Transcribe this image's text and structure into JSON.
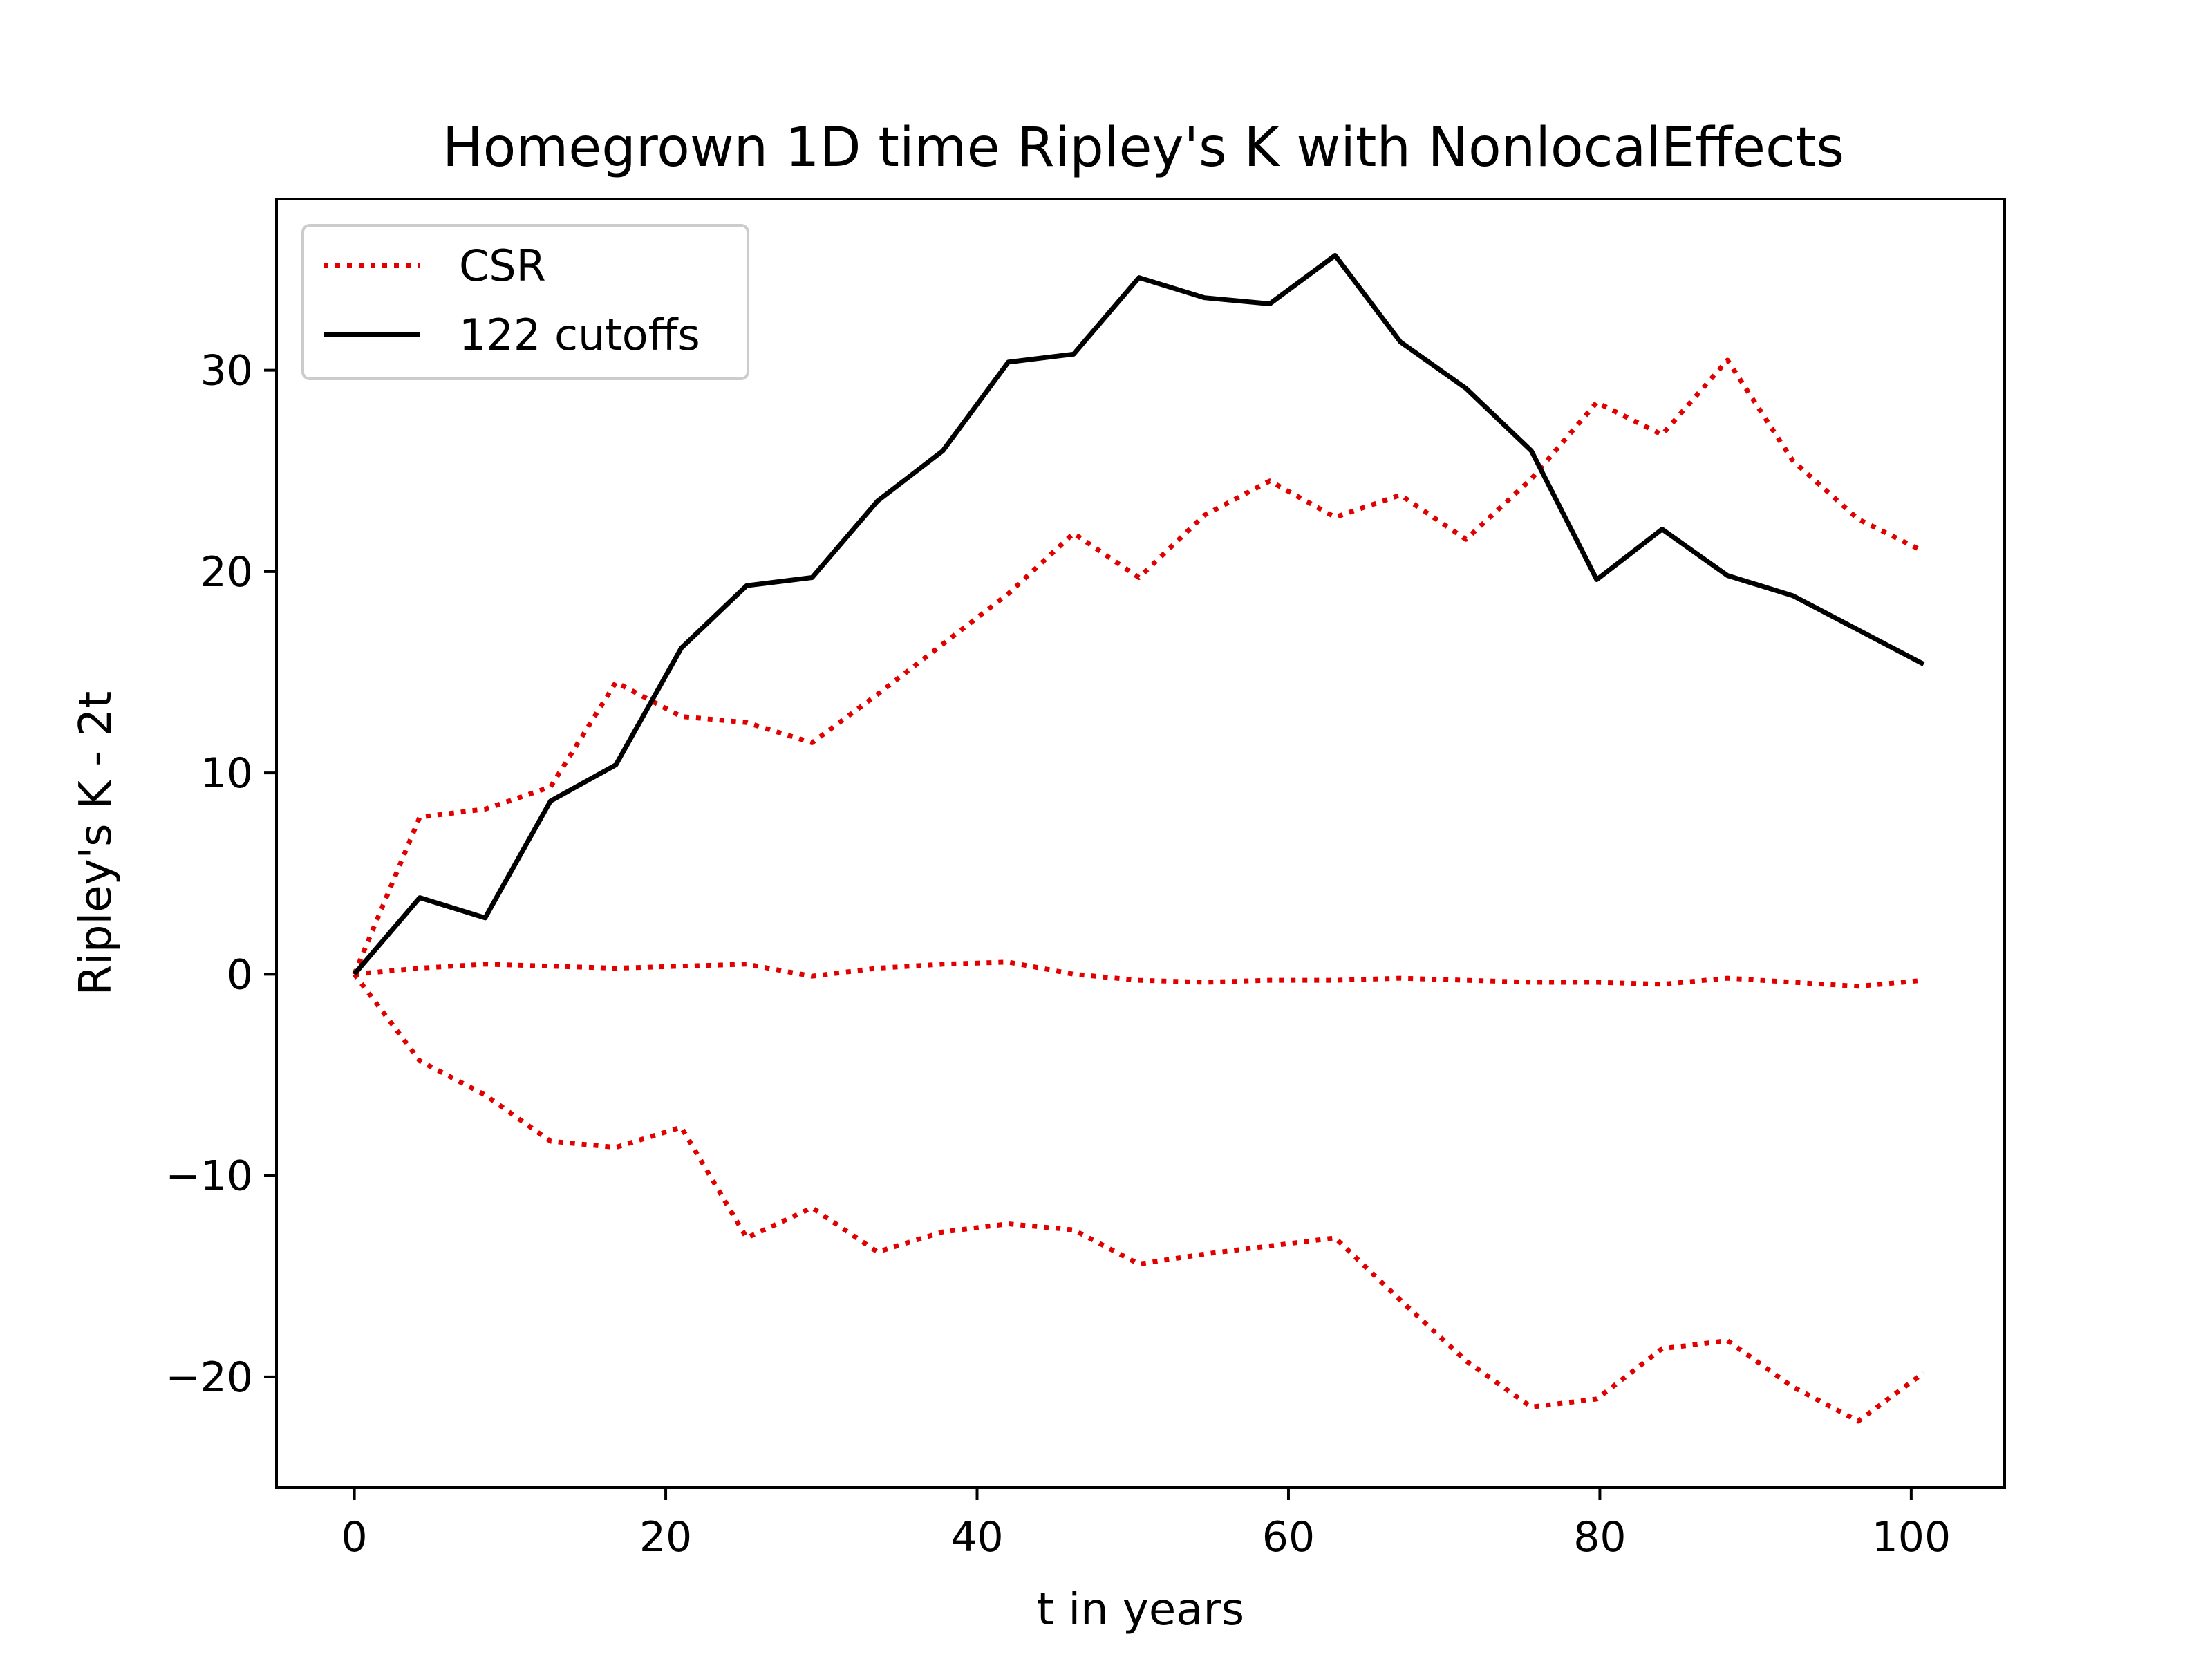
{
  "chart_data": {
    "type": "line",
    "title": "Homegrown 1D time Ripley's K with NonlocalEffects",
    "xlabel": "t in years",
    "ylabel": "Ripley's K - 2t",
    "xlim": [
      -5,
      106
    ],
    "ylim": [
      -25.5,
      38.5
    ],
    "xticks": [
      0,
      20,
      40,
      60,
      80,
      100
    ],
    "yticks": [
      -20,
      -10,
      0,
      10,
      20,
      30
    ],
    "xtick_labels": [
      "0",
      "20",
      "40",
      "60",
      "80",
      "100"
    ],
    "ytick_labels": [
      "−20",
      "−10",
      "0",
      "10",
      "20",
      "30"
    ],
    "grid": false,
    "legend_position": "upper-left",
    "legend": [
      {
        "label": "CSR",
        "color": "#e00000",
        "style": "dotted"
      },
      {
        "label": "122 cutoffs",
        "color": "#000000",
        "style": "solid"
      }
    ],
    "x": [
      0,
      4.2,
      8.4,
      12.6,
      16.8,
      21,
      25.2,
      29.4,
      33.6,
      37.8,
      42,
      46.2,
      50.4,
      54.6,
      58.8,
      63,
      67.2,
      71.4,
      75.6,
      79.8,
      84,
      88.2,
      92.4,
      96.6,
      100.8
    ],
    "series": [
      {
        "name": "122 cutoffs",
        "color": "#000000",
        "style": "solid",
        "values": [
          0,
          3.8,
          2.8,
          8.6,
          10.4,
          16.2,
          19.3,
          19.7,
          23.5,
          26.0,
          30.4,
          30.8,
          34.6,
          33.6,
          33.3,
          35.7,
          31.4,
          29.1,
          26.0,
          19.6,
          22.1,
          19.8,
          18.8,
          17.1,
          15.4
        ]
      },
      {
        "name": "CSR",
        "color": "#e00000",
        "style": "dotted",
        "values": [
          0,
          7.8,
          8.2,
          9.3,
          14.5,
          12.8,
          12.5,
          11.5,
          13.9,
          16.4,
          18.9,
          21.9,
          19.7,
          22.8,
          24.5,
          22.7,
          23.8,
          21.6,
          24.6,
          28.4,
          26.8,
          30.5,
          25.5,
          22.6,
          21.0
        ]
      },
      {
        "name": "CSR",
        "color": "#e00000",
        "style": "dotted",
        "values": [
          0,
          0.3,
          0.5,
          0.4,
          0.3,
          0.4,
          0.5,
          -0.1,
          0.3,
          0.5,
          0.6,
          0.0,
          -0.3,
          -0.4,
          -0.3,
          -0.3,
          -0.2,
          -0.3,
          -0.4,
          -0.4,
          -0.5,
          -0.2,
          -0.4,
          -0.6,
          -0.3
        ]
      },
      {
        "name": "CSR",
        "color": "#e00000",
        "style": "dotted",
        "values": [
          0,
          -4.3,
          -6.0,
          -8.3,
          -8.6,
          -7.6,
          -13.1,
          -11.6,
          -13.8,
          -12.8,
          -12.4,
          -12.7,
          -14.4,
          -13.9,
          -13.5,
          -13.1,
          -16.2,
          -19.2,
          -21.5,
          -21.1,
          -18.6,
          -18.2,
          -20.5,
          -22.2,
          -19.8
        ]
      }
    ]
  }
}
